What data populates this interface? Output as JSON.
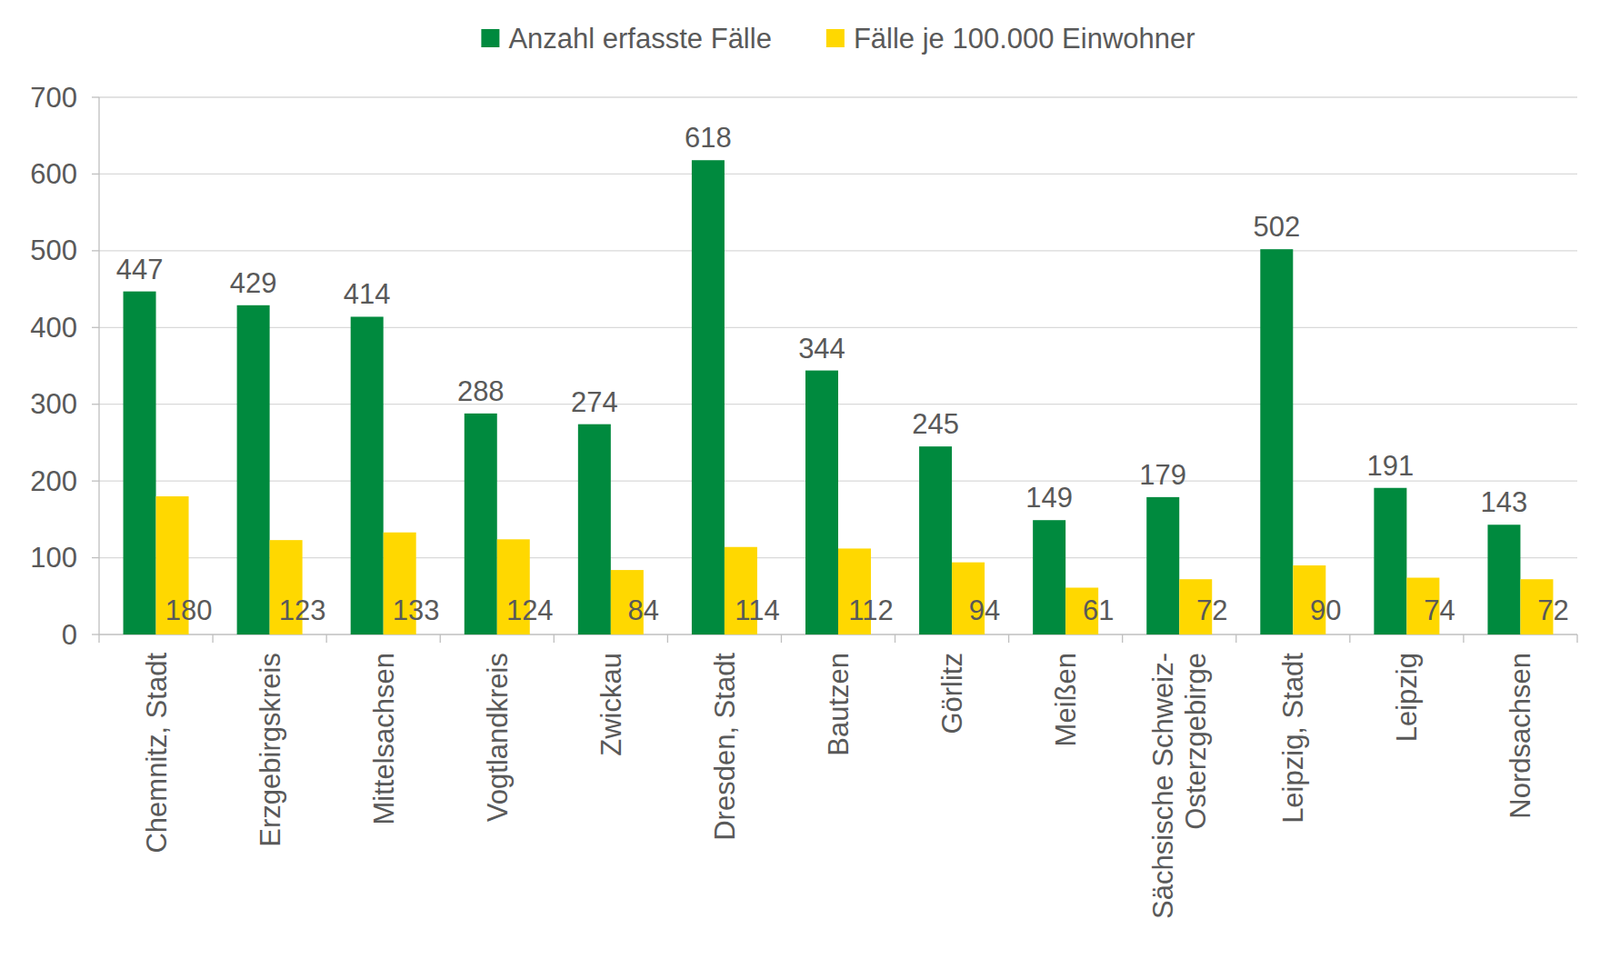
{
  "chart_data": {
    "type": "bar",
    "categories": [
      "Chemnitz, Stadt",
      "Erzgebirgskreis",
      "Mittelsachsen",
      "Vogtlandkreis",
      "Zwickau",
      "Dresden, Stadt",
      "Bautzen",
      "Görlitz",
      "Meißen",
      "Sächsische Schweiz-Osterzgebirge",
      "Leipzig, Stadt",
      "Leipzig",
      "Nordsachsen"
    ],
    "series": [
      {
        "name": "Anzahl erfasste Fälle",
        "color": "#008a3e",
        "values": [
          447,
          429,
          414,
          288,
          274,
          618,
          344,
          245,
          149,
          179,
          502,
          191,
          143
        ]
      },
      {
        "name": "Fälle je 100.000 Einwohner",
        "color": "#ffd800",
        "values": [
          180,
          123,
          133,
          124,
          84,
          114,
          112,
          94,
          61,
          72,
          90,
          74,
          72
        ]
      }
    ],
    "ylim": [
      0,
      700
    ],
    "yticks": [
      0,
      100,
      200,
      300,
      400,
      500,
      600,
      700
    ],
    "grid": true,
    "legend": "top",
    "data_labels": true
  }
}
